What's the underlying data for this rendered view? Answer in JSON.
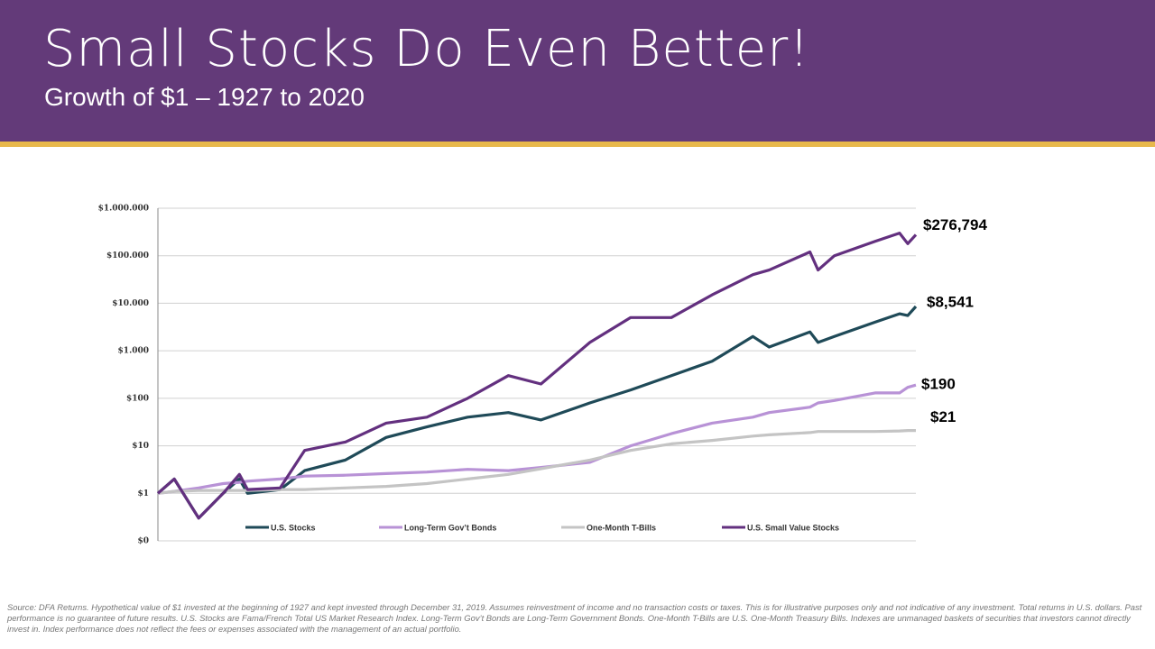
{
  "header": {
    "title": "Small Stocks Do Even Better!",
    "subtitle": "Growth of $1 – 1927 to 2020"
  },
  "chart_data": {
    "type": "line",
    "log_scale": true,
    "grid": true,
    "legend": "bottom",
    "x": [
      1927,
      1929,
      1932,
      1935,
      1937,
      1938,
      1942,
      1945,
      1950,
      1955,
      1960,
      1965,
      1970,
      1974,
      1980,
      1985,
      1990,
      1995,
      2000,
      2002,
      2007,
      2008,
      2010,
      2015,
      2018,
      2019,
      2020
    ],
    "xlim": [
      1927,
      2020
    ],
    "ylim": [
      0.1,
      1000000
    ],
    "yticks": [
      {
        "value": 0.1,
        "label": "$0"
      },
      {
        "value": 1,
        "label": "$1"
      },
      {
        "value": 10,
        "label": "$10"
      },
      {
        "value": 100,
        "label": "$100"
      },
      {
        "value": 1000,
        "label": "$1.000"
      },
      {
        "value": 10000,
        "label": "$10.000"
      },
      {
        "value": 100000,
        "label": "$100.000"
      },
      {
        "value": 1000000,
        "label": "$1.000.000"
      }
    ],
    "series": [
      {
        "name": "U.S. Stocks",
        "color": "#1f4a58",
        "values": [
          1,
          2,
          0.3,
          1,
          2,
          1,
          1.2,
          3,
          5,
          15,
          25,
          40,
          50,
          35,
          80,
          150,
          300,
          600,
          2000,
          1200,
          2500,
          1500,
          2000,
          4000,
          6000,
          5500,
          8541
        ],
        "value_labels": [
          null,
          null,
          null,
          null,
          null,
          null,
          null,
          null,
          null,
          null,
          null,
          null,
          null,
          null,
          null,
          null,
          null,
          null,
          null,
          null,
          null,
          null,
          null,
          null,
          null,
          null,
          "$8,541"
        ]
      },
      {
        "name": "Long-Term Gov’t Bonds",
        "color": "#b892d6",
        "values": [
          1,
          1.1,
          1.3,
          1.6,
          1.7,
          1.8,
          2,
          2.3,
          2.4,
          2.6,
          2.8,
          3.2,
          3,
          3.5,
          4.5,
          10,
          18,
          30,
          40,
          50,
          65,
          80,
          90,
          130,
          130,
          170,
          190
        ],
        "value_labels": [
          null,
          null,
          null,
          null,
          null,
          null,
          null,
          null,
          null,
          null,
          null,
          null,
          null,
          null,
          null,
          null,
          null,
          null,
          null,
          null,
          null,
          null,
          null,
          null,
          null,
          null,
          "$190"
        ]
      },
      {
        "name": "One-Month T-Bills",
        "color": "#c4c4c4",
        "values": [
          1,
          1.1,
          1.15,
          1.15,
          1.15,
          1.15,
          1.2,
          1.2,
          1.3,
          1.4,
          1.6,
          2,
          2.5,
          3.3,
          5,
          8,
          11,
          13,
          16,
          17,
          19,
          20,
          20,
          20,
          20.5,
          21,
          21
        ],
        "value_labels": [
          null,
          null,
          null,
          null,
          null,
          null,
          null,
          null,
          null,
          null,
          null,
          null,
          null,
          null,
          null,
          null,
          null,
          null,
          null,
          null,
          null,
          null,
          null,
          null,
          null,
          null,
          "$21"
        ]
      },
      {
        "name": "U.S. Small Value Stocks",
        "color": "#63307f",
        "values": [
          1,
          2,
          0.3,
          1,
          2.5,
          1.2,
          1.3,
          8,
          12,
          30,
          40,
          100,
          300,
          200,
          1500,
          5000,
          5000,
          15000,
          40000,
          50000,
          120000,
          50000,
          100000,
          200000,
          300000,
          180000,
          276794
        ],
        "value_labels": [
          null,
          null,
          null,
          null,
          null,
          null,
          null,
          null,
          null,
          null,
          null,
          null,
          null,
          null,
          null,
          null,
          null,
          null,
          null,
          null,
          null,
          null,
          null,
          null,
          null,
          null,
          "$276,794"
        ]
      }
    ]
  },
  "footnote": "Source: DFA Returns. Hypothetical value of $1 invested at the beginning of 1927 and kept invested through December 31, 2019. Assumes reinvestment of income and no transaction costs or taxes. This is for illustrative purposes only and not indicative of any investment. Total returns in U.S. dollars. Past performance is no guarantee of future results. U.S. Stocks are Fama/French Total US Market Research Index. Long-Term Gov’t Bonds are Long-Term Government Bonds. One-Month T-Bills are U.S. One-Month Treasury Bills. Indexes are unmanaged baskets of securities that investors cannot directly invest in. Index performance does not reflect the fees or expenses associated with the management of an actual portfolio."
}
